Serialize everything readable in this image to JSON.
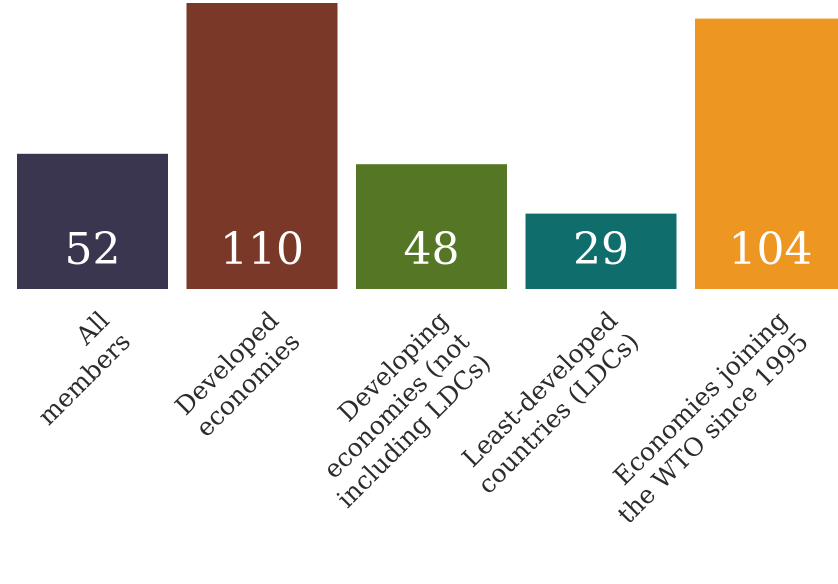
{
  "chart_data": {
    "type": "bar",
    "categories": [
      [
        "All",
        "members"
      ],
      [
        "Developed",
        "economies"
      ],
      [
        "Developing",
        "economies (not",
        "including LDCs)"
      ],
      [
        "Least-developed",
        "countries (LDCs)"
      ],
      [
        "Economies joining",
        "the WTO since 1995"
      ]
    ],
    "values": [
      52,
      110,
      48,
      29,
      104
    ],
    "colors": [
      "#3a364f",
      "#7a3828",
      "#557725",
      "#0f6e6b",
      "#ee9622"
    ],
    "title": "",
    "xlabel": "",
    "ylabel": "",
    "grid": false,
    "legend": "none"
  }
}
